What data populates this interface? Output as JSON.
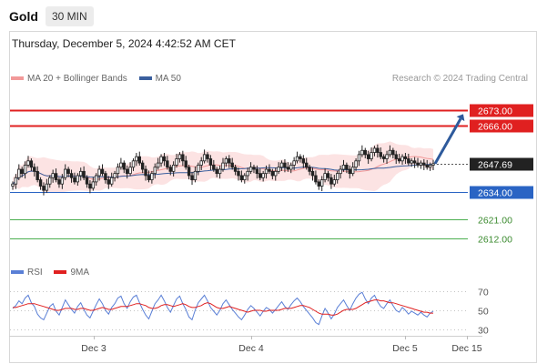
{
  "header": {
    "symbol": "Gold",
    "timeframe": "30 MIN"
  },
  "datetime": "Thursday, December 5, 2024 4:42:52 AM CET",
  "credit": "Research © 2024 Trading Central",
  "legend_price": [
    {
      "label": "MA 20 + Bollinger Bands",
      "color": "#f29999"
    },
    {
      "label": "MA 50",
      "color": "#3a5f9e"
    }
  ],
  "legend_rsi": [
    {
      "label": "RSI",
      "color": "#5a7fd6"
    },
    {
      "label": "9MA",
      "color": "#e02020"
    }
  ],
  "colors": {
    "bull": "#ffffff",
    "bear": "#222222",
    "resistance": "#e02020",
    "support_blue": "#2a64c4",
    "support_green": "#4caf50",
    "arrow": "#2e5a9c"
  },
  "chart_data": {
    "type": "candlestick",
    "price_axis": {
      "ylim": [
        2603,
        2684
      ]
    },
    "levels": [
      {
        "value": 2673.0,
        "label": "2673.00",
        "style": "resistance"
      },
      {
        "value": 2666.0,
        "label": "2666.00",
        "style": "resistance"
      },
      {
        "value": 2647.69,
        "label": "2647.69",
        "style": "last"
      },
      {
        "value": 2634.0,
        "label": "2634.00",
        "style": "support_blue"
      },
      {
        "value": 2621.0,
        "label": "2621.00",
        "style": "support_green"
      },
      {
        "value": 2612.0,
        "label": "2612.00",
        "style": "support_green"
      }
    ],
    "x_ticks": [
      "Dec 3",
      "Dec 4",
      "Dec 5",
      "Dec 15"
    ],
    "closes": [
      2638,
      2641,
      2645,
      2643,
      2647,
      2649,
      2646,
      2644,
      2640,
      2637,
      2635,
      2638,
      2641,
      2643,
      2640,
      2638,
      2641,
      2645,
      2643,
      2641,
      2639,
      2642,
      2644,
      2641,
      2638,
      2636,
      2639,
      2642,
      2645,
      2643,
      2640,
      2638,
      2641,
      2643,
      2646,
      2648,
      2645,
      2643,
      2646,
      2649,
      2651,
      2648,
      2645,
      2642,
      2640,
      2643,
      2646,
      2648,
      2651,
      2649,
      2646,
      2644,
      2647,
      2650,
      2652,
      2649,
      2646,
      2642,
      2640,
      2644,
      2647,
      2649,
      2652,
      2650,
      2647,
      2645,
      2643,
      2645,
      2648,
      2650,
      2648,
      2646,
      2644,
      2642,
      2640,
      2642,
      2644,
      2646,
      2645,
      2643,
      2641,
      2643,
      2645,
      2644,
      2642,
      2644,
      2646,
      2648,
      2646,
      2645,
      2647,
      2649,
      2651,
      2650,
      2648,
      2646,
      2644,
      2642,
      2639,
      2637,
      2640,
      2643,
      2641,
      2638,
      2640,
      2643,
      2645,
      2647,
      2645,
      2643,
      2646,
      2649,
      2652,
      2654,
      2652,
      2650,
      2653,
      2655,
      2653,
      2651,
      2650,
      2652,
      2654,
      2652,
      2650,
      2649,
      2651,
      2650,
      2648,
      2649,
      2648,
      2647,
      2648,
      2647,
      2646,
      2647,
      2647.69
    ],
    "rsi_axis": {
      "ylim": [
        25,
        75
      ],
      "ticks": [
        70,
        50,
        30
      ]
    },
    "rsi": [
      52,
      55,
      60,
      57,
      63,
      66,
      58,
      54,
      46,
      42,
      40,
      47,
      54,
      57,
      49,
      45,
      53,
      61,
      56,
      51,
      47,
      54,
      58,
      51,
      45,
      42,
      49,
      56,
      62,
      57,
      50,
      46,
      53,
      57,
      63,
      65,
      57,
      52,
      59,
      64,
      66,
      58,
      51,
      45,
      41,
      49,
      57,
      61,
      66,
      60,
      53,
      48,
      55,
      62,
      65,
      57,
      51,
      43,
      40,
      50,
      58,
      62,
      66,
      60,
      53,
      49,
      45,
      50,
      57,
      61,
      56,
      51,
      47,
      43,
      40,
      45,
      51,
      55,
      52,
      48,
      44,
      49,
      53,
      51,
      47,
      51,
      55,
      59,
      54,
      51,
      56,
      60,
      63,
      59,
      54,
      50,
      46,
      42,
      37,
      35,
      44,
      52,
      47,
      41,
      46,
      53,
      57,
      61,
      55,
      50,
      57,
      63,
      67,
      69,
      62,
      57,
      63,
      66,
      59,
      54,
      52,
      57,
      61,
      55,
      50,
      48,
      53,
      50,
      46,
      49,
      47,
      45,
      48,
      45,
      43,
      47,
      49
    ],
    "rsi_9ma": [
      53,
      53,
      54,
      55,
      56,
      57,
      57,
      57,
      56,
      55,
      54,
      53,
      52,
      51,
      50,
      50,
      51,
      52,
      52,
      52,
      51,
      51,
      52,
      52,
      51,
      50,
      50,
      51,
      52,
      53,
      52,
      51,
      51,
      52,
      53,
      54,
      54,
      54,
      55,
      56,
      57,
      57,
      56,
      55,
      53,
      52,
      52,
      53,
      55,
      56,
      56,
      55,
      54,
      55,
      56,
      57,
      56,
      54,
      53,
      53,
      54,
      55,
      57,
      58,
      57,
      55,
      53,
      52,
      52,
      53,
      54,
      53,
      52,
      51,
      50,
      49,
      48,
      49,
      50,
      50,
      50,
      49,
      49,
      50,
      50,
      50,
      50,
      51,
      52,
      52,
      52,
      53,
      54,
      55,
      55,
      54,
      53,
      51,
      49,
      47,
      46,
      46,
      46,
      45,
      45,
      46,
      48,
      50,
      51,
      51,
      51,
      52,
      54,
      56,
      58,
      59,
      60,
      61,
      61,
      60,
      60,
      59,
      58,
      58,
      57,
      56,
      55,
      54,
      53,
      52,
      51,
      50,
      49,
      48,
      48,
      47,
      47
    ]
  }
}
